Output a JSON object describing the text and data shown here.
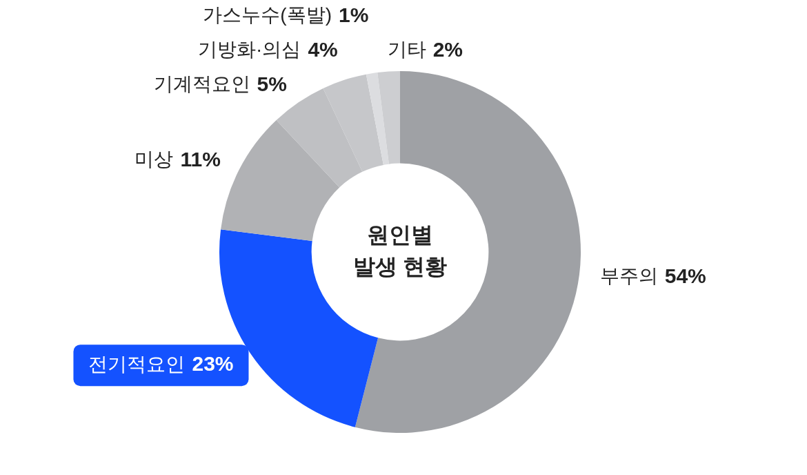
{
  "chart_data": {
    "type": "donut",
    "title": "원인별 발생 현황",
    "categories": [
      "부주의",
      "전기적요인",
      "미상",
      "기계적요인",
      "기방화·의심",
      "가스누수(폭발)",
      "기타"
    ],
    "values": [
      54,
      23,
      11,
      5,
      4,
      1,
      2
    ],
    "value_labels": [
      "54%",
      "23%",
      "11%",
      "5%",
      "4%",
      "1%",
      "2%"
    ],
    "colors": [
      "#9fa1a5",
      "#1452ff",
      "#b1b2b5",
      "#bfc0c3",
      "#c6c7ca",
      "#dcdde0",
      "#cdced1"
    ],
    "legend": false
  }
}
